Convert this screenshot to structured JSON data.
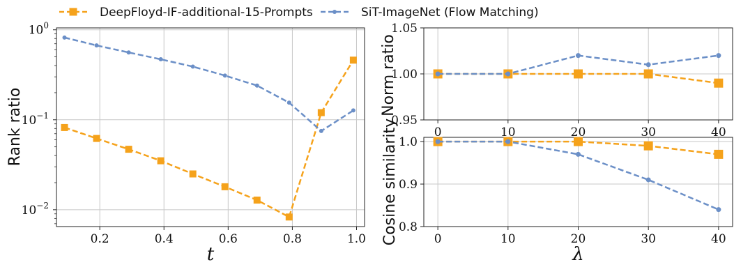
{
  "legend": {
    "items": [
      {
        "label": "DeepFloyd-IF-additional-15-Prompts",
        "color": "#f5a21b",
        "marker": "square"
      },
      {
        "label": "SiT-ImageNet (Flow Matching)",
        "color": "#6b8fc7",
        "marker": "circle"
      }
    ]
  },
  "chart_data": [
    {
      "type": "line",
      "ylabel": "Rank ratio",
      "xlabel": "t",
      "yscale": "log",
      "xlim": [
        0.065,
        1.025
      ],
      "ylim": [
        0.0065,
        1.05
      ],
      "xticks": [
        0.2,
        0.4,
        0.6,
        0.8,
        1.0
      ],
      "xtick_labels": [
        "0.2",
        "0.4",
        "0.6",
        "0.8",
        "1.0"
      ],
      "yticks": [
        0.01,
        0.1,
        1
      ],
      "ytick_labels": [
        {
          "base": "10",
          "exp": "−2"
        },
        {
          "base": "10",
          "exp": "−1"
        },
        {
          "base": "10",
          "exp": "0"
        }
      ],
      "grid": true,
      "x": [
        0.09,
        0.19,
        0.29,
        0.39,
        0.49,
        0.59,
        0.69,
        0.79,
        0.89,
        0.99
      ],
      "series": [
        {
          "name": "DeepFloyd-IF-additional-15-Prompts",
          "color": "#f5a21b",
          "marker": "square",
          "values": [
            0.082,
            0.062,
            0.047,
            0.035,
            0.025,
            0.018,
            0.0128,
            0.0083,
            0.12,
            0.46
          ]
        },
        {
          "name": "SiT-ImageNet (Flow Matching)",
          "color": "#6b8fc7",
          "marker": "circle",
          "values": [
            0.82,
            0.67,
            0.56,
            0.47,
            0.39,
            0.31,
            0.24,
            0.155,
            0.075,
            0.127
          ]
        }
      ]
    },
    {
      "type": "line",
      "ylabel": "Norm ratio",
      "xlabel": "",
      "xlim": [
        -2,
        42
      ],
      "ylim": [
        0.95,
        1.05
      ],
      "xticks": [
        0,
        10,
        20,
        30,
        40
      ],
      "xtick_labels": [
        "0",
        "10",
        "20",
        "30",
        "40"
      ],
      "yticks": [
        0.95,
        1.0,
        1.05
      ],
      "ytick_labels": [
        "0.95",
        "1.00",
        "1.05"
      ],
      "grid": true,
      "x": [
        0,
        10,
        20,
        30,
        40
      ],
      "series": [
        {
          "name": "DeepFloyd-IF-additional-15-Prompts",
          "color": "#f5a21b",
          "marker": "square",
          "values": [
            1.0,
            1.0,
            1.0,
            1.0,
            0.99
          ]
        },
        {
          "name": "SiT-ImageNet (Flow Matching)",
          "color": "#6b8fc7",
          "marker": "circle",
          "values": [
            1.0,
            1.0,
            1.02,
            1.01,
            1.02
          ]
        }
      ]
    },
    {
      "type": "line",
      "ylabel": "Cosine similarity",
      "xlabel": "λ",
      "xlim": [
        -2,
        42
      ],
      "ylim": [
        0.8,
        1.01
      ],
      "xticks": [
        0,
        10,
        20,
        30,
        40
      ],
      "xtick_labels": [
        "0",
        "10",
        "20",
        "30",
        "40"
      ],
      "yticks": [
        0.8,
        0.9,
        1.0
      ],
      "ytick_labels": [
        "0.8",
        "0.9",
        "1.0"
      ],
      "grid": true,
      "x": [
        0,
        10,
        20,
        30,
        40
      ],
      "series": [
        {
          "name": "DeepFloyd-IF-additional-15-Prompts",
          "color": "#f5a21b",
          "marker": "square",
          "values": [
            1.0,
            1.0,
            1.0,
            0.99,
            0.97
          ]
        },
        {
          "name": "SiT-ImageNet (Flow Matching)",
          "color": "#6b8fc7",
          "marker": "circle",
          "values": [
            1.0,
            1.0,
            0.97,
            0.91,
            0.84
          ]
        }
      ]
    }
  ]
}
